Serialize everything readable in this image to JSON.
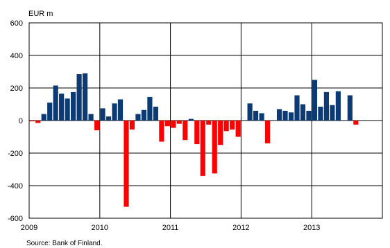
{
  "chart_data": {
    "type": "bar",
    "unit_label": "EUR m",
    "source": "Source: Bank of Finland.",
    "ylim": [
      -600,
      600
    ],
    "yticks": [
      "600",
      "400",
      "200",
      "0",
      "-200",
      "-400",
      "-600"
    ],
    "ytick_values": [
      600,
      400,
      200,
      0,
      -200,
      -400,
      -600
    ],
    "xticks": [
      "2009",
      "2010",
      "2011",
      "2012",
      "2013"
    ],
    "x_start": "2009-01",
    "grid": true,
    "colors": {
      "positive": "#0c3a74",
      "negative": "#ff0000"
    },
    "series": [
      {
        "values": [
          -5,
          -15,
          40,
          110,
          215,
          165,
          135,
          175,
          285,
          290,
          40,
          -60,
          75,
          25,
          105,
          130,
          -530,
          -55,
          40,
          65,
          145,
          85,
          -130,
          -35,
          -45,
          -20,
          -120,
          10,
          -145,
          -340,
          -25,
          -325,
          -150,
          -65,
          -55,
          -100,
          0,
          105,
          60,
          45,
          -140,
          0,
          70,
          60,
          50,
          155,
          100,
          60,
          250,
          85,
          175,
          95,
          180,
          0,
          155,
          -25
        ]
      }
    ]
  }
}
